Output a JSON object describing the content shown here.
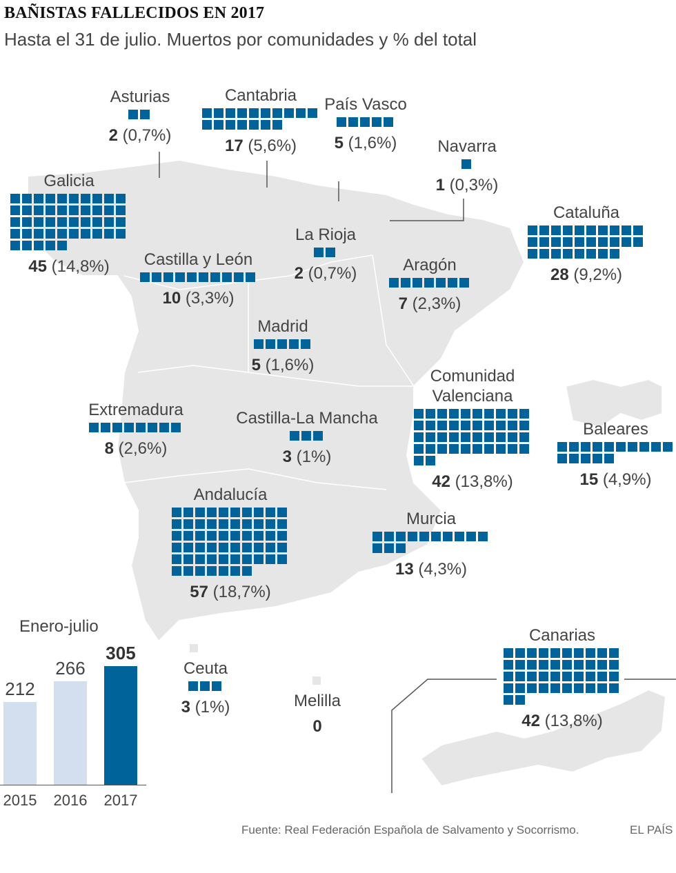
{
  "header": {
    "title": "BAÑISTAS FALLECIDOS EN 2017",
    "subtitle": "Hasta el 31 de julio. Muertos por comunidades y % del total"
  },
  "colors": {
    "accent": "#00649b",
    "light_bar": "#d3dfef",
    "land": "#e6e6e6"
  },
  "chart_data": [
    {
      "type": "waffle-map",
      "regions": [
        {
          "name": "Asturias",
          "value": 2,
          "pct": "(0,7%)"
        },
        {
          "name": "Cantabria",
          "value": 17,
          "pct": "(5,6%)"
        },
        {
          "name": "País Vasco",
          "value": 5,
          "pct": "(1,6%)"
        },
        {
          "name": "Navarra",
          "value": 1,
          "pct": "(0,3%)"
        },
        {
          "name": "Galicia",
          "value": 45,
          "pct": "(14,8%)"
        },
        {
          "name": "Cataluña",
          "value": 28,
          "pct": "(9,2%)"
        },
        {
          "name": "La Rioja",
          "value": 2,
          "pct": "(0,7%)"
        },
        {
          "name": "Castilla y León",
          "value": 10,
          "pct": "(3,3%)"
        },
        {
          "name": "Aragón",
          "value": 7,
          "pct": "(2,3%)"
        },
        {
          "name": "Madrid",
          "value": 5,
          "pct": "(1,6%)"
        },
        {
          "name": "Comunidad Valenciana",
          "value": 42,
          "pct": "(13,8%)"
        },
        {
          "name": "Extremadura",
          "value": 8,
          "pct": "(2,6%)"
        },
        {
          "name": "Castilla-La Mancha",
          "value": 3,
          "pct": "(1%)"
        },
        {
          "name": "Baleares",
          "value": 15,
          "pct": "(4,9%)"
        },
        {
          "name": "Andalucía",
          "value": 57,
          "pct": "(18,7%)"
        },
        {
          "name": "Murcia",
          "value": 13,
          "pct": "(4,3%)"
        },
        {
          "name": "Ceuta",
          "value": 3,
          "pct": "(1%)"
        },
        {
          "name": "Melilla",
          "value": 0,
          "pct": ""
        },
        {
          "name": "Canarias",
          "value": 42,
          "pct": "(13,8%)"
        }
      ]
    },
    {
      "type": "bar",
      "title": "Enero-julio",
      "categories": [
        "2015",
        "2016",
        "2017"
      ],
      "values": [
        212,
        266,
        305
      ],
      "ylim": [
        0,
        305
      ]
    }
  ],
  "footer": {
    "source": "Fuente: Real Federación Española de Salvamento y Socorrismo.",
    "brand": "EL PAÍS"
  }
}
